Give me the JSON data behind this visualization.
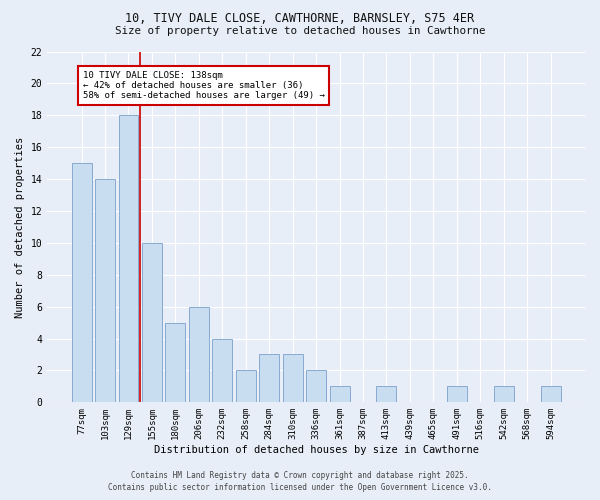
{
  "title_line1": "10, TIVY DALE CLOSE, CAWTHORNE, BARNSLEY, S75 4ER",
  "title_line2": "Size of property relative to detached houses in Cawthorne",
  "xlabel": "Distribution of detached houses by size in Cawthorne",
  "ylabel": "Number of detached properties",
  "categories": [
    "77sqm",
    "103sqm",
    "129sqm",
    "155sqm",
    "180sqm",
    "206sqm",
    "232sqm",
    "258sqm",
    "284sqm",
    "310sqm",
    "336sqm",
    "361sqm",
    "387sqm",
    "413sqm",
    "439sqm",
    "465sqm",
    "491sqm",
    "516sqm",
    "542sqm",
    "568sqm",
    "594sqm"
  ],
  "values": [
    15,
    14,
    18,
    10,
    5,
    6,
    4,
    2,
    3,
    3,
    2,
    1,
    0,
    1,
    0,
    0,
    1,
    0,
    1,
    0,
    1
  ],
  "bar_color": "#c9ddf0",
  "bar_edge_color": "#88aad0",
  "background_color": "#e8eef8",
  "grid_color": "#ffffff",
  "red_line_x": 2.5,
  "annotation_text": "10 TIVY DALE CLOSE: 138sqm\n← 42% of detached houses are smaller (36)\n58% of semi-detached houses are larger (49) →",
  "annotation_box_color": "#ffffff",
  "annotation_box_edge": "#cc0000",
  "red_line_color": "#cc0000",
  "ylim": [
    0,
    22
  ],
  "yticks": [
    0,
    2,
    4,
    6,
    8,
    10,
    12,
    14,
    16,
    18,
    20,
    22
  ],
  "footer_line1": "Contains HM Land Registry data © Crown copyright and database right 2025.",
  "footer_line2": "Contains public sector information licensed under the Open Government Licence v3.0."
}
